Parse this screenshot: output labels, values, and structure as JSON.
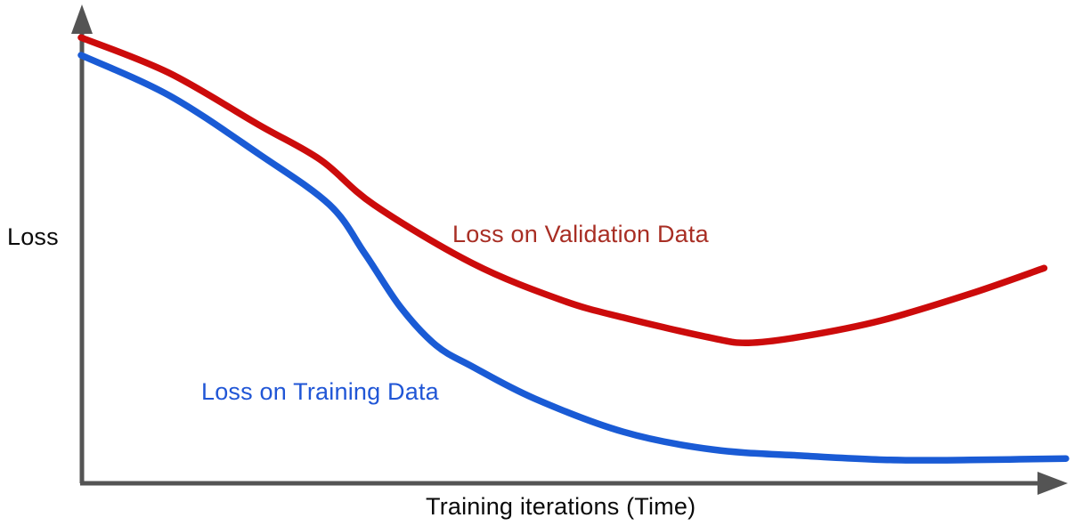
{
  "labels": {
    "y_axis": "Loss",
    "x_axis": "Training iterations (Time)",
    "validation_curve": "Loss on Validation Data",
    "training_curve": "Loss on Training Data"
  },
  "colors": {
    "validation_line": "#CC0B0B",
    "validation_label": "#A82E24",
    "training_line": "#1A5BD5",
    "training_label": "#2056D6",
    "axis": "#545454",
    "text": "#0A0A0A",
    "background": "#FFFFFF"
  },
  "chart_data": {
    "type": "line",
    "title": "",
    "xlabel": "Training iterations (Time)",
    "ylabel": "Loss",
    "tick_labels": "none (conceptual sketch, unlabeled axes)",
    "xlim": [
      0,
      100
    ],
    "ylim": [
      0,
      1
    ],
    "grid": false,
    "legend": "inline colored text labels next to curves",
    "x_units": "percent of x-axis length",
    "y_units": "normalized loss (0 = axis baseline, 1 = axis top)",
    "series": [
      {
        "id": "validation",
        "name": "Loss on Validation Data",
        "color": "#CC0B0B",
        "shape": "decreases, reaches minimum ~68% of the way, then rises (overfitting)",
        "points": [
          [
            0.0,
            0.936
          ],
          [
            8.9,
            0.862
          ],
          [
            18.0,
            0.753
          ],
          [
            24.3,
            0.679
          ],
          [
            29.7,
            0.585
          ],
          [
            39.7,
            0.462
          ],
          [
            48.7,
            0.385
          ],
          [
            55.0,
            0.348
          ],
          [
            64.0,
            0.305
          ],
          [
            67.7,
            0.295
          ],
          [
            73.1,
            0.308
          ],
          [
            81.2,
            0.342
          ],
          [
            90.2,
            0.398
          ],
          [
            97.7,
            0.452
          ]
        ]
      },
      {
        "id": "training",
        "name": "Loss on Training Data",
        "color": "#1A5BD5",
        "shape": "decreases steeply around 26-40% then asymptotically flattens near zero",
        "points": [
          [
            0.0,
            0.899
          ],
          [
            8.9,
            0.815
          ],
          [
            18.0,
            0.692
          ],
          [
            25.2,
            0.585
          ],
          [
            28.8,
            0.482
          ],
          [
            32.4,
            0.37
          ],
          [
            36.0,
            0.29
          ],
          [
            39.7,
            0.245
          ],
          [
            46.0,
            0.178
          ],
          [
            55.0,
            0.108
          ],
          [
            64.0,
            0.071
          ],
          [
            73.1,
            0.058
          ],
          [
            82.1,
            0.049
          ],
          [
            90.2,
            0.049
          ],
          [
            99.9,
            0.052
          ]
        ]
      }
    ]
  }
}
